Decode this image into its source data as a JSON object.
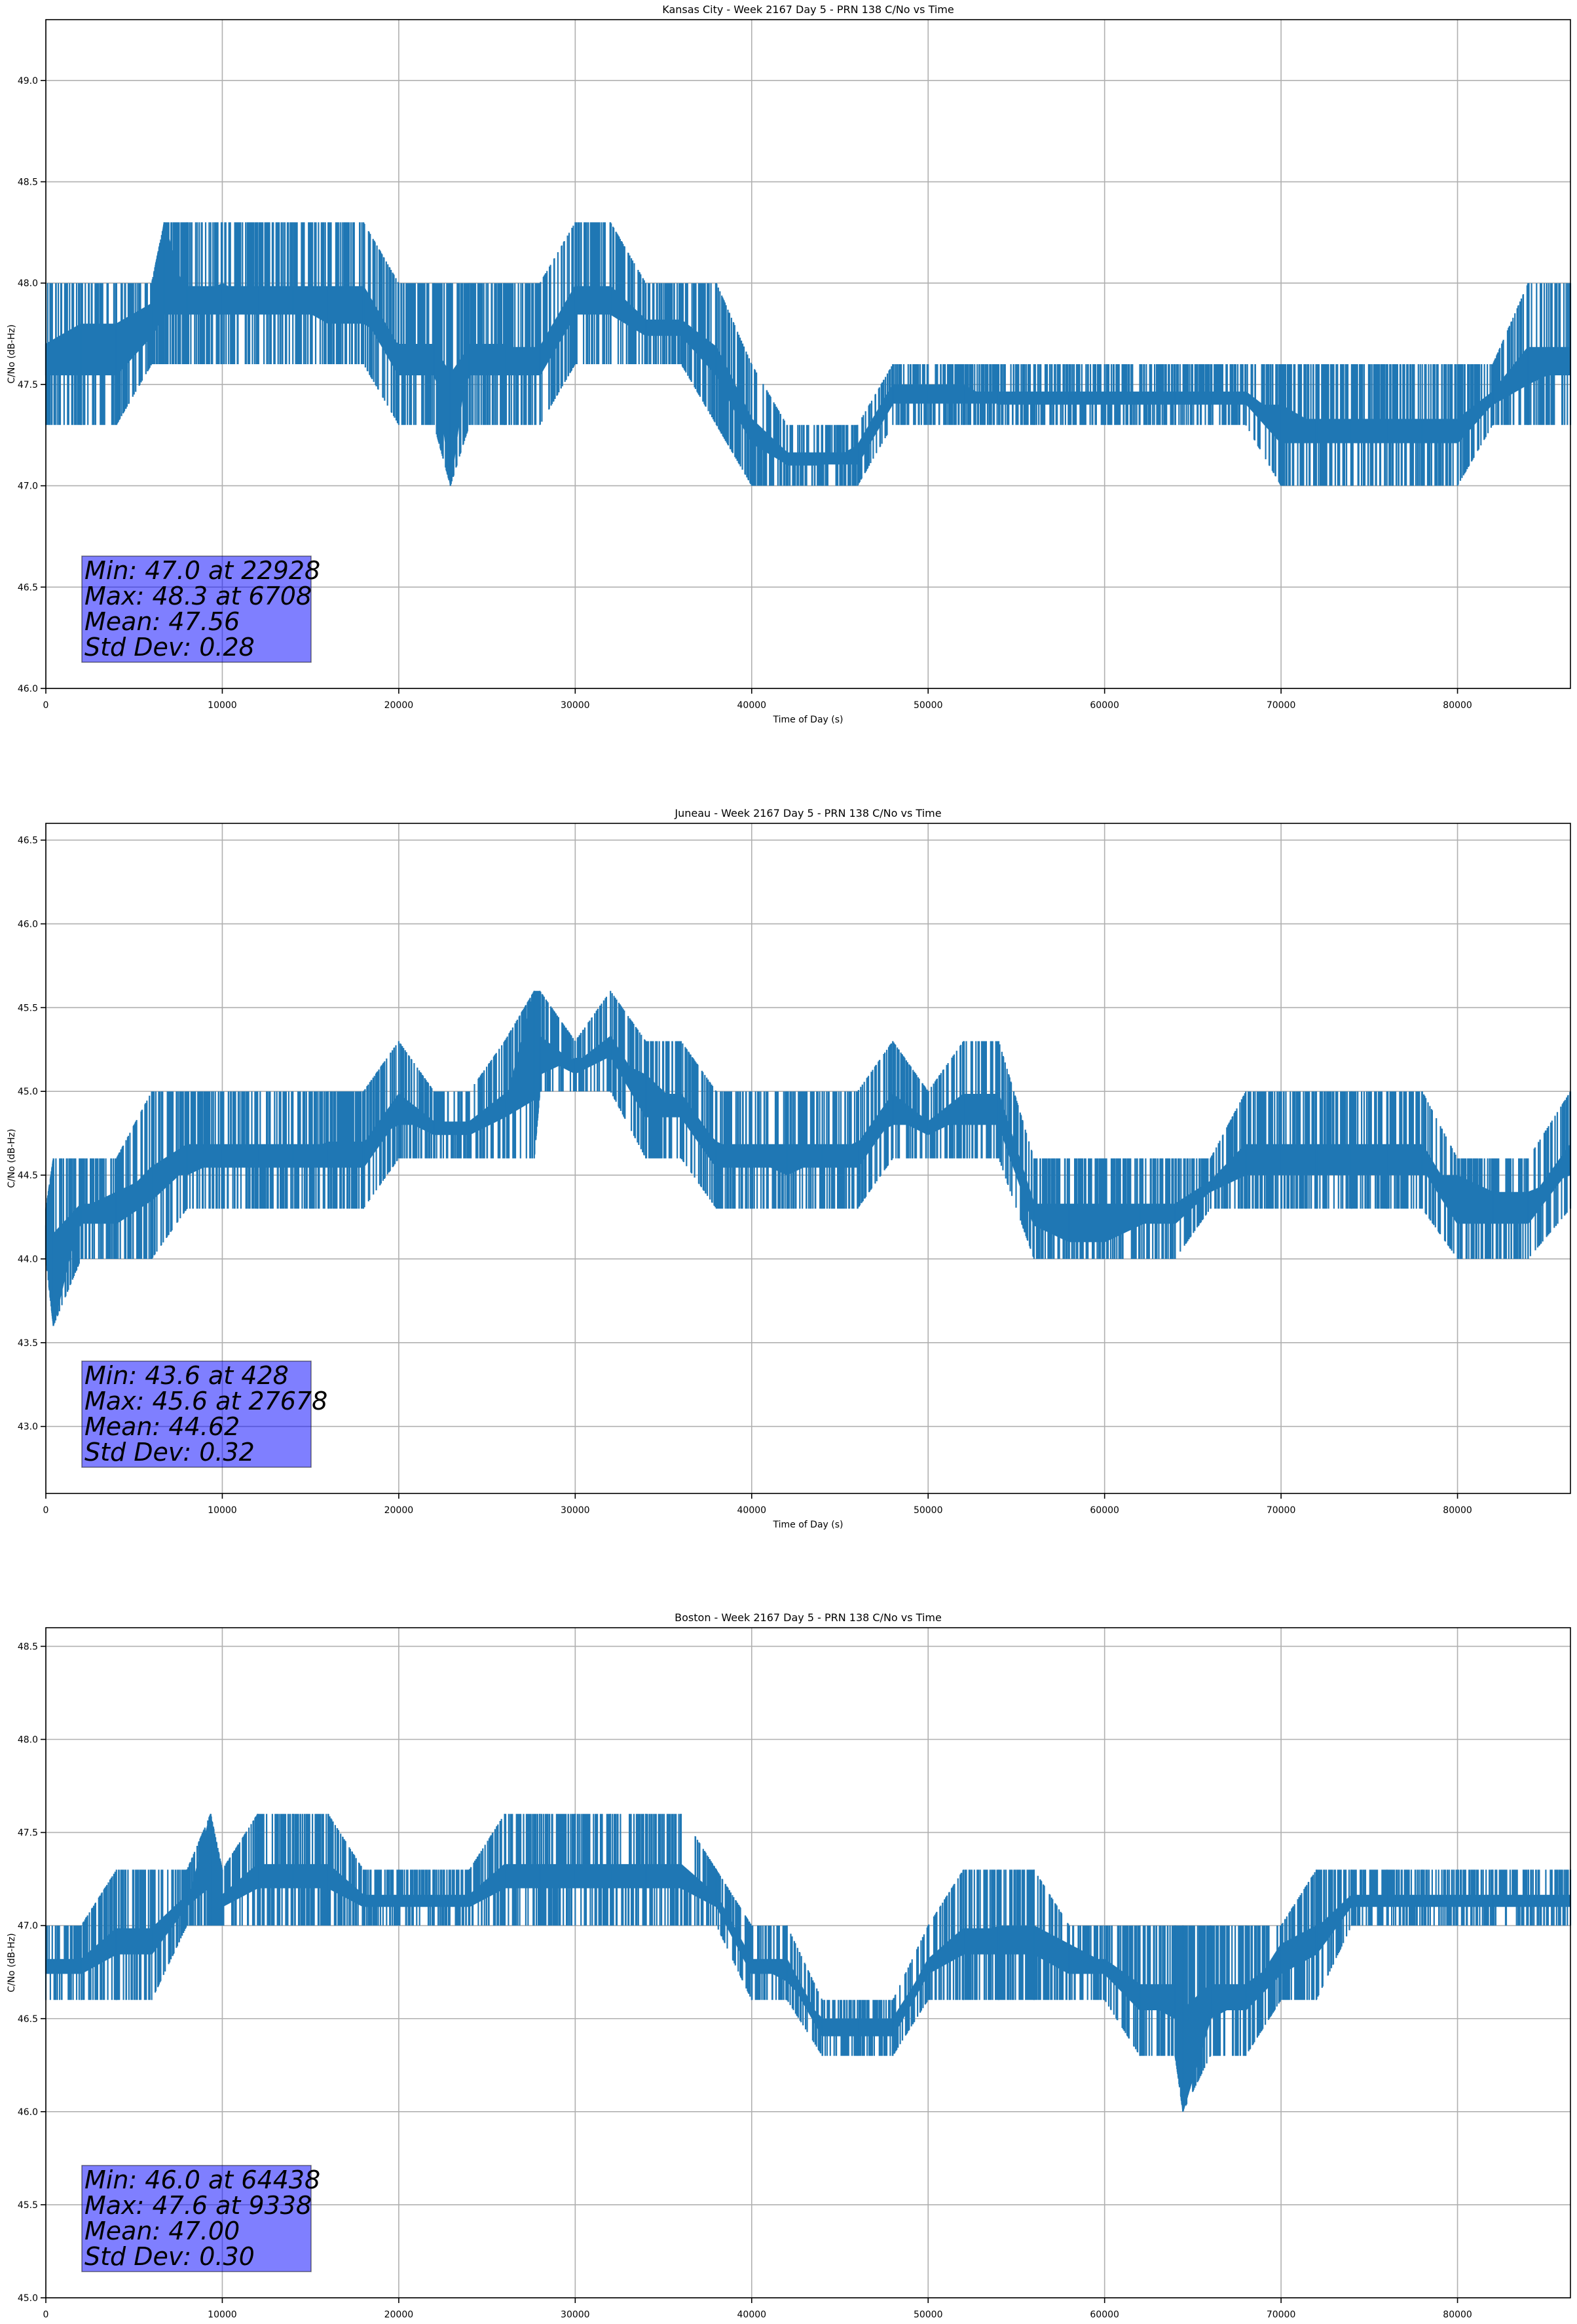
{
  "chart_data": [
    {
      "type": "line",
      "title": "Kansas City - Week 2167 Day 5 - PRN 138 C/No vs Time",
      "xlabel": "Time of Day (s)",
      "ylabel": "C/No (dB-Hz)",
      "xlim": [
        0,
        86400
      ],
      "ylim": [
        46.0,
        49.3
      ],
      "xticks": [
        0,
        10000,
        20000,
        30000,
        40000,
        50000,
        60000,
        70000,
        80000
      ],
      "yticks": [
        46.0,
        46.5,
        47.0,
        47.5,
        48.0,
        48.5,
        49.0
      ],
      "grid": true,
      "line_color": "#1f77b4",
      "series": [
        {
          "x": [
            0,
            2000,
            4000,
            6000,
            6708,
            8000,
            10000,
            12000,
            14000,
            16000,
            18000,
            20000,
            22000,
            22928,
            24000,
            26000,
            28000,
            30000,
            32000,
            34000,
            36000,
            38000,
            40000,
            42000,
            44000,
            46000,
            48000,
            50000,
            52000,
            54000,
            56000,
            58000,
            60000,
            62000,
            64000,
            66000,
            68000,
            70000,
            72000,
            74000,
            76000,
            78000,
            80000,
            82000,
            84000,
            86400
          ],
          "values": [
            47.7,
            47.8,
            47.8,
            47.9,
            48.3,
            47.9,
            48.0,
            47.9,
            47.9,
            47.8,
            47.8,
            47.7,
            47.7,
            47.0,
            47.7,
            47.7,
            47.6,
            47.9,
            47.9,
            47.8,
            47.8,
            47.6,
            47.3,
            47.1,
            47.1,
            47.2,
            47.5,
            47.5,
            47.5,
            47.4,
            47.4,
            47.4,
            47.4,
            47.4,
            47.4,
            47.4,
            47.4,
            47.4,
            47.3,
            47.3,
            47.3,
            47.3,
            47.3,
            47.4,
            47.5,
            47.6
          ],
          "low": [
            47.3,
            47.3,
            47.3,
            47.6,
            47.6,
            47.6,
            47.6,
            47.6,
            47.6,
            47.6,
            47.6,
            47.3,
            47.3,
            47.0,
            47.3,
            47.3,
            47.3,
            47.6,
            47.6,
            47.6,
            47.6,
            47.3,
            47.0,
            47.0,
            47.0,
            47.0,
            47.3,
            47.3,
            47.3,
            47.3,
            47.3,
            47.3,
            47.3,
            47.3,
            47.3,
            47.3,
            47.3,
            47.0,
            47.0,
            47.0,
            47.0,
            47.0,
            47.0,
            47.3,
            47.3,
            47.3
          ],
          "high": [
            48.0,
            48.0,
            48.0,
            48.0,
            48.3,
            48.3,
            48.3,
            48.3,
            48.3,
            48.3,
            48.3,
            48.0,
            48.0,
            48.0,
            48.0,
            48.0,
            48.0,
            48.3,
            48.3,
            48.0,
            48.0,
            48.0,
            47.6,
            47.3,
            47.3,
            47.3,
            47.6,
            47.6,
            47.6,
            47.6,
            47.6,
            47.6,
            47.6,
            47.6,
            47.6,
            47.6,
            47.6,
            47.6,
            47.6,
            47.6,
            47.6,
            47.6,
            47.6,
            47.6,
            48.0,
            48.0
          ]
        }
      ],
      "stats": [
        "Min: 47.0 at 22928",
        "Max: 48.3 at 6708",
        "Mean: 47.56",
        "Std Dev: 0.28"
      ]
    },
    {
      "type": "line",
      "title": "Juneau - Week 2167 Day 5 - PRN 138 C/No vs Time",
      "xlabel": "Time of Day (s)",
      "ylabel": "C/No (dB-Hz)",
      "xlim": [
        0,
        86400
      ],
      "ylim": [
        42.6,
        46.6
      ],
      "xticks": [
        0,
        10000,
        20000,
        30000,
        40000,
        50000,
        60000,
        70000,
        80000
      ],
      "yticks": [
        43.0,
        43.5,
        44.0,
        44.5,
        45.0,
        45.5,
        46.0,
        46.5
      ],
      "grid": true,
      "line_color": "#1f77b4",
      "series": [
        {
          "x": [
            0,
            428,
            2000,
            4000,
            6000,
            8000,
            10000,
            12000,
            14000,
            16000,
            18000,
            20000,
            22000,
            24000,
            26000,
            27678,
            28000,
            30000,
            32000,
            34000,
            36000,
            38000,
            40000,
            42000,
            44000,
            46000,
            48000,
            50000,
            52000,
            54000,
            56000,
            58000,
            60000,
            62000,
            64000,
            66000,
            68000,
            70000,
            72000,
            74000,
            76000,
            78000,
            80000,
            82000,
            84000,
            86400
          ],
          "values": [
            44.2,
            43.6,
            44.3,
            44.4,
            44.5,
            44.5,
            44.6,
            44.6,
            44.6,
            44.7,
            44.7,
            44.8,
            44.8,
            44.8,
            44.9,
            45.6,
            45.1,
            45.2,
            45.2,
            45.1,
            44.9,
            44.7,
            44.6,
            44.5,
            44.6,
            44.7,
            44.8,
            44.8,
            44.8,
            44.8,
            44.2,
            44.1,
            44.1,
            44.2,
            44.3,
            44.4,
            44.5,
            44.5,
            44.5,
            44.5,
            44.5,
            44.5,
            44.5,
            44.4,
            44.4,
            44.5
          ],
          "low": [
            44.0,
            43.6,
            44.0,
            44.0,
            44.0,
            44.3,
            44.3,
            44.3,
            44.3,
            44.3,
            44.3,
            44.6,
            44.6,
            44.6,
            44.6,
            44.6,
            45.0,
            45.0,
            45.0,
            44.6,
            44.6,
            44.3,
            44.3,
            44.3,
            44.3,
            44.3,
            44.6,
            44.6,
            44.6,
            44.6,
            44.0,
            44.0,
            44.0,
            44.0,
            44.0,
            44.3,
            44.3,
            44.3,
            44.3,
            44.3,
            44.3,
            44.3,
            44.0,
            44.0,
            44.0,
            44.3
          ],
          "high": [
            44.3,
            44.6,
            44.6,
            44.6,
            45.0,
            45.0,
            45.0,
            45.0,
            45.0,
            45.0,
            45.0,
            45.3,
            45.0,
            45.0,
            45.3,
            45.6,
            45.6,
            45.3,
            45.6,
            45.3,
            45.3,
            45.0,
            45.0,
            45.0,
            45.0,
            45.0,
            45.3,
            45.0,
            45.3,
            45.3,
            44.6,
            44.6,
            44.6,
            44.6,
            44.6,
            44.6,
            45.0,
            45.0,
            45.0,
            45.0,
            45.0,
            45.0,
            44.6,
            44.6,
            44.6,
            45.0
          ]
        }
      ],
      "stats": [
        "Min: 43.6 at 428",
        "Max: 45.6 at 27678",
        "Mean: 44.62",
        "Std Dev: 0.32"
      ]
    },
    {
      "type": "line",
      "title": "Boston - Week 2167 Day 5 - PRN 138 C/No vs Time",
      "xlabel": "Time of Day (s)",
      "ylabel": "C/No (dB-Hz)",
      "xlim": [
        0,
        86400
      ],
      "ylim": [
        45.0,
        48.6
      ],
      "xticks": [
        0,
        10000,
        20000,
        30000,
        40000,
        50000,
        60000,
        70000,
        80000
      ],
      "yticks": [
        45.0,
        45.5,
        46.0,
        46.5,
        47.0,
        47.5,
        48.0,
        48.5
      ],
      "grid": true,
      "line_color": "#1f77b4",
      "series": [
        {
          "x": [
            0,
            2000,
            4000,
            6000,
            8000,
            9338,
            10000,
            12000,
            14000,
            16000,
            18000,
            20000,
            22000,
            24000,
            26000,
            28000,
            30000,
            32000,
            34000,
            36000,
            38000,
            40000,
            42000,
            44000,
            46000,
            48000,
            50000,
            52000,
            54000,
            56000,
            58000,
            60000,
            62000,
            64000,
            64438,
            66000,
            68000,
            70000,
            72000,
            74000,
            76000,
            78000,
            80000,
            82000,
            84000,
            86400
          ],
          "values": [
            46.8,
            46.8,
            46.9,
            46.9,
            47.1,
            47.6,
            47.1,
            47.2,
            47.2,
            47.2,
            47.1,
            47.1,
            47.1,
            47.1,
            47.2,
            47.2,
            47.2,
            47.2,
            47.2,
            47.2,
            47.1,
            46.8,
            46.7,
            46.5,
            46.5,
            46.5,
            46.8,
            46.9,
            47.0,
            47.0,
            46.9,
            46.8,
            46.6,
            46.5,
            46.0,
            46.5,
            46.6,
            46.9,
            47.0,
            47.1,
            47.1,
            47.1,
            47.1,
            47.1,
            47.1,
            47.1
          ],
          "low": [
            46.6,
            46.6,
            46.6,
            46.6,
            47.0,
            47.0,
            47.0,
            47.0,
            47.0,
            47.0,
            47.0,
            47.0,
            47.0,
            47.0,
            47.0,
            47.0,
            47.0,
            47.0,
            47.0,
            47.0,
            47.0,
            46.6,
            46.6,
            46.3,
            46.3,
            46.3,
            46.6,
            46.6,
            46.6,
            46.6,
            46.6,
            46.6,
            46.3,
            46.3,
            46.0,
            46.3,
            46.3,
            46.6,
            46.6,
            47.0,
            47.0,
            47.0,
            47.0,
            47.0,
            47.0,
            47.0
          ],
          "high": [
            47.0,
            47.0,
            47.3,
            47.3,
            47.3,
            47.6,
            47.3,
            47.6,
            47.6,
            47.6,
            47.3,
            47.3,
            47.3,
            47.3,
            47.6,
            47.6,
            47.6,
            47.6,
            47.6,
            47.6,
            47.3,
            47.0,
            47.0,
            46.6,
            46.6,
            46.6,
            47.0,
            47.3,
            47.3,
            47.3,
            47.0,
            47.0,
            47.0,
            47.0,
            47.0,
            47.0,
            47.0,
            47.0,
            47.3,
            47.3,
            47.3,
            47.3,
            47.3,
            47.3,
            47.3,
            47.3
          ]
        }
      ],
      "stats": [
        "Min: 46.0 at 64438",
        "Max: 47.6 at 9338",
        "Mean: 47.00",
        "Std Dev: 0.30"
      ]
    }
  ]
}
